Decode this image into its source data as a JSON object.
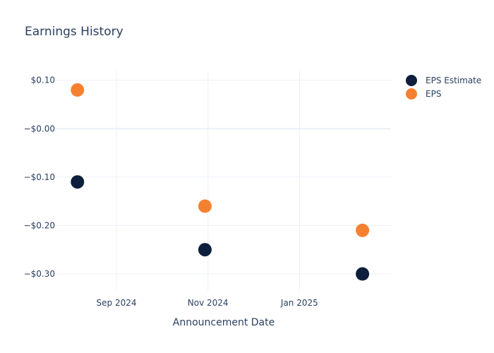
{
  "chart_data": {
    "type": "scatter",
    "title": "Earnings History",
    "xlabel": "Announcement Date",
    "ylabel": "",
    "x_ticks": [
      {
        "date": "2024-09-01",
        "label": "Sep 2024"
      },
      {
        "date": "2024-11-01",
        "label": "Nov 2024"
      },
      {
        "date": "2025-01-01",
        "label": "Jan 2025"
      }
    ],
    "y_ticks": [
      {
        "value": 0.1,
        "label": "$0.10"
      },
      {
        "value": 0.0,
        "label": "−$0.00"
      },
      {
        "value": -0.1,
        "label": "−$0.10"
      },
      {
        "value": -0.2,
        "label": "−$0.20"
      },
      {
        "value": -0.3,
        "label": "−$0.30"
      }
    ],
    "xlim": [
      "2024-07-23",
      "2025-03-03"
    ],
    "ylim": [
      -0.335,
      0.12
    ],
    "grid": true,
    "legend": "top-right",
    "series": [
      {
        "name": "EPS Estimate",
        "color": "#0d1f3c",
        "points": [
          {
            "x": "2024-08-06",
            "y": -0.11
          },
          {
            "x": "2024-10-30",
            "y": -0.25
          },
          {
            "x": "2025-02-12",
            "y": -0.3
          }
        ]
      },
      {
        "name": "EPS",
        "color": "#f58130",
        "points": [
          {
            "x": "2024-08-06",
            "y": 0.08
          },
          {
            "x": "2024-10-30",
            "y": -0.16
          },
          {
            "x": "2025-02-12",
            "y": -0.21
          }
        ]
      }
    ]
  }
}
